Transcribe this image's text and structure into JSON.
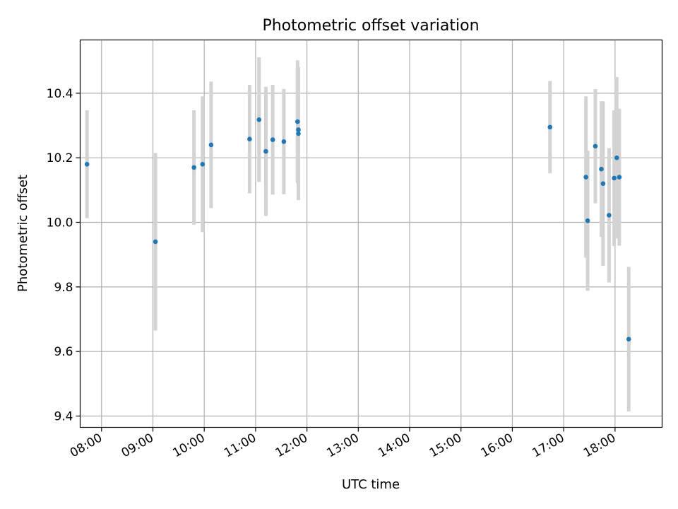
{
  "chart_data": {
    "type": "scatter",
    "title": "Photometric offset variation",
    "xlabel": "UTC time",
    "ylabel": "Photometric offset",
    "xlim": [
      "07:35",
      "18:55"
    ],
    "ylim": [
      9.365,
      10.565
    ],
    "x_ticks": [
      "08:00",
      "09:00",
      "10:00",
      "11:00",
      "12:00",
      "13:00",
      "14:00",
      "15:00",
      "16:00",
      "17:00",
      "18:00"
    ],
    "y_ticks": [
      9.4,
      9.6,
      9.8,
      10.0,
      10.2,
      10.4
    ],
    "y_tick_labels": [
      "9.4",
      "9.6",
      "9.8",
      "10.0",
      "10.2",
      "10.4"
    ],
    "grid": true,
    "marker_color": "#1f77b4",
    "errorbar_color": "#d3d3d3",
    "points": [
      {
        "time": "07:43",
        "y": 10.18,
        "err": 0.167
      },
      {
        "time": "09:03",
        "y": 9.94,
        "err": 0.275
      },
      {
        "time": "09:48",
        "y": 10.17,
        "err": 0.177
      },
      {
        "time": "09:58",
        "y": 10.18,
        "err": 0.21
      },
      {
        "time": "10:08",
        "y": 10.24,
        "err": 0.196
      },
      {
        "time": "10:53",
        "y": 10.258,
        "err": 0.168
      },
      {
        "time": "11:04",
        "y": 10.318,
        "err": 0.193
      },
      {
        "time": "11:12",
        "y": 10.22,
        "err": 0.2
      },
      {
        "time": "11:20",
        "y": 10.256,
        "err": 0.17
      },
      {
        "time": "11:33",
        "y": 10.25,
        "err": 0.163
      },
      {
        "time": "11:49",
        "y": 10.312,
        "err": 0.19
      },
      {
        "time": "11:50",
        "y": 10.287,
        "err": 0.16
      },
      {
        "time": "11:50",
        "y": 10.275,
        "err": 0.206
      },
      {
        "time": "16:44",
        "y": 10.295,
        "err": 0.143
      },
      {
        "time": "17:26",
        "y": 10.14,
        "err": 0.25
      },
      {
        "time": "17:28",
        "y": 10.005,
        "err": 0.217
      },
      {
        "time": "17:37",
        "y": 10.236,
        "err": 0.177
      },
      {
        "time": "17:44",
        "y": 10.165,
        "err": 0.21
      },
      {
        "time": "17:46",
        "y": 10.12,
        "err": 0.255
      },
      {
        "time": "17:53",
        "y": 10.022,
        "err": 0.208
      },
      {
        "time": "17:59",
        "y": 10.137,
        "err": 0.21
      },
      {
        "time": "18:02",
        "y": 10.2,
        "err": 0.25
      },
      {
        "time": "18:05",
        "y": 10.14,
        "err": 0.212
      },
      {
        "time": "18:16",
        "y": 9.638,
        "err": 0.224
      }
    ]
  }
}
